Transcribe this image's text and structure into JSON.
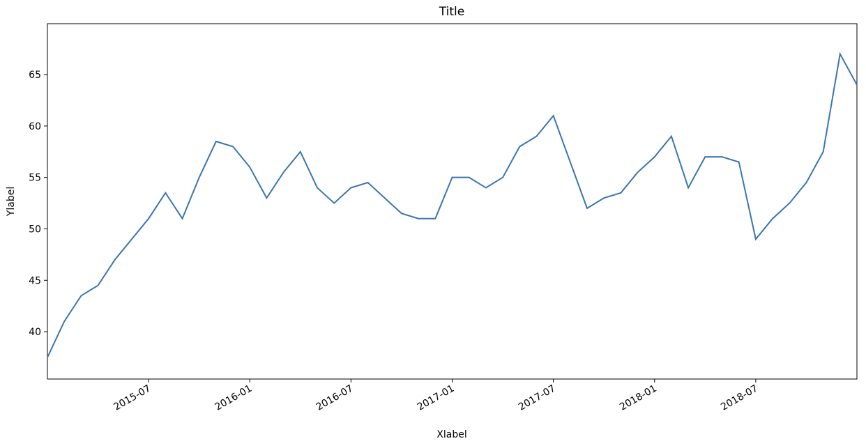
{
  "chart_data": {
    "type": "line",
    "title": "Title",
    "x_label": "Xlabel",
    "y_label": "Ylabel",
    "x": [
      "2015-01",
      "2015-02",
      "2015-03",
      "2015-04",
      "2015-05",
      "2015-06",
      "2015-07",
      "2015-08",
      "2015-09",
      "2015-10",
      "2015-11",
      "2015-12",
      "2016-01",
      "2016-02",
      "2016-03",
      "2016-04",
      "2016-05",
      "2016-06",
      "2016-07",
      "2016-08",
      "2016-09",
      "2016-10",
      "2016-11",
      "2016-12",
      "2017-01",
      "2017-02",
      "2017-03",
      "2017-04",
      "2017-05",
      "2017-06",
      "2017-07",
      "2017-08",
      "2017-09",
      "2017-10",
      "2017-11",
      "2017-12",
      "2018-01",
      "2018-02",
      "2018-03",
      "2018-04",
      "2018-05",
      "2018-06",
      "2018-07",
      "2018-08",
      "2018-09",
      "2018-10",
      "2018-11",
      "2018-12",
      "2019-01"
    ],
    "series": [
      {
        "color": "#3a75af",
        "values": [
          37.5,
          41,
          43.5,
          44.5,
          47,
          49,
          51,
          53.5,
          51,
          55,
          58.5,
          58,
          56,
          53,
          55.5,
          57.5,
          54,
          52.5,
          54,
          54.5,
          53,
          51.5,
          51,
          51,
          55,
          55,
          54,
          55,
          58,
          59,
          61,
          56.5,
          52,
          53,
          53.5,
          55.5,
          57,
          59,
          54,
          57,
          57,
          56.5,
          49,
          51,
          52.5,
          54.5,
          57.5,
          67,
          64
        ]
      }
    ],
    "xlim": [
      "2015-01",
      "2019-01"
    ],
    "xticks": [
      "2015-07",
      "2016-01",
      "2016-07",
      "2017-01",
      "2017-07",
      "2018-01",
      "2018-07"
    ],
    "ylim": [
      35.4,
      69.95
    ],
    "yticks": [
      40,
      45,
      50,
      55,
      60,
      65
    ]
  }
}
